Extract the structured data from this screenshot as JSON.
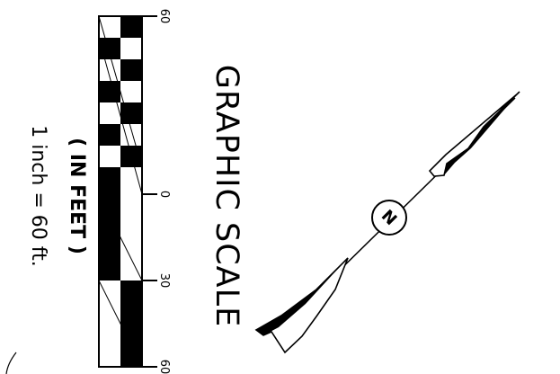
{
  "drawing": {
    "title": "GRAPHIC SCALE",
    "units_label": "( IN FEET )",
    "ratio_label": "1 inch = 60 ft.",
    "north_arrow_letter": "N"
  },
  "scale_bar": {
    "tick_labels": [
      "60",
      "0",
      "30",
      "60"
    ]
  },
  "colors": {
    "ink": "#000000",
    "paper": "#ffffff"
  }
}
